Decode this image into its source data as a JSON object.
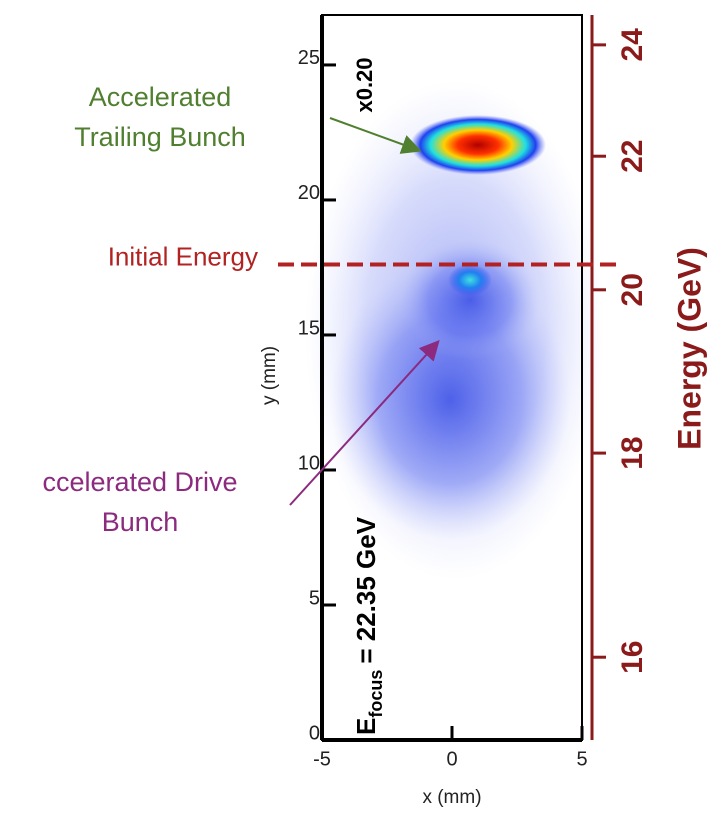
{
  "chart_data": {
    "type": "image",
    "x_label": "x (mm)",
    "y_label": "y (mm)",
    "y2_label": "Energy (GeV)",
    "xlim": [
      -5,
      5
    ],
    "xticks": [
      -5,
      0,
      5
    ],
    "ylim": [
      0,
      26.85
    ],
    "yticks": [
      0,
      5,
      10,
      15,
      20,
      25
    ],
    "y2lim": [
      15.31,
      24.6
    ],
    "y2scale": "reciprocal",
    "y2ticks": [
      16,
      18,
      20,
      22,
      24
    ],
    "y2color": "#8b1a1a",
    "scale_note": "x0.20",
    "focus_label": {
      "symbol": "E",
      "subscript": "focus",
      "text": "= 22.35 GeV"
    },
    "initial_energy": {
      "label": "Initial Energy",
      "value": 20.35,
      "color": "#b22222"
    },
    "annotations": [
      {
        "lines": [
          "Accelerated",
          "Trailing Bunch"
        ],
        "color": "#4f7f2f"
      },
      {
        "lines": [
          "ccelerated Drive",
          "Bunch"
        ],
        "color": "#8b2a7e"
      }
    ]
  }
}
